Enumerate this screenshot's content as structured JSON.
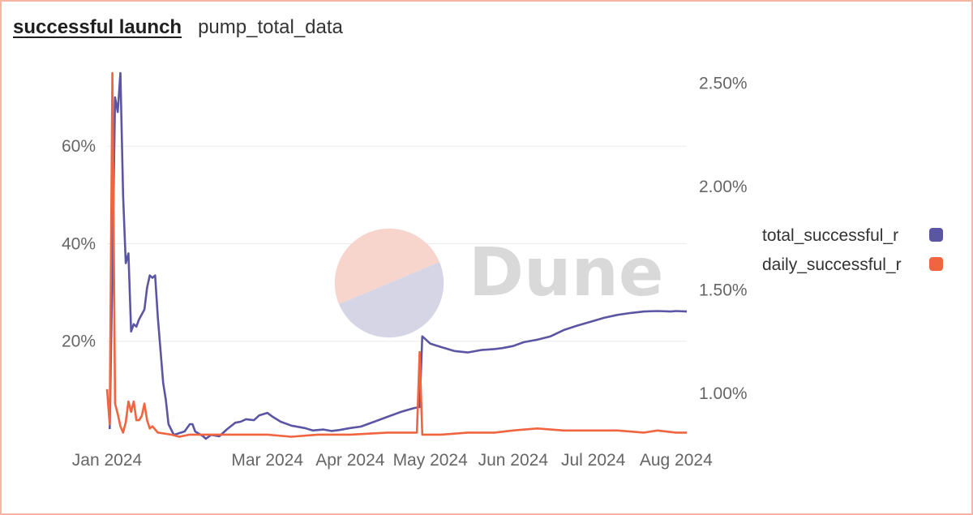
{
  "header": {
    "title": "successful launch",
    "subtitle": "pump_total_data"
  },
  "watermark": {
    "text": "Dune"
  },
  "colors": {
    "total": "#5a56a3",
    "daily": "#f0643f",
    "grid": "#ececec",
    "border": "#f4b5a3"
  },
  "chart_data": {
    "type": "line",
    "x_ticks": [
      "Jan 2024",
      "Mar 2024",
      "Apr 2024",
      "May 2024",
      "Jun 2024",
      "Jul 2024",
      "Aug 2024"
    ],
    "x_tick_dates": [
      "2024-01-01",
      "2024-03-01",
      "2024-04-01",
      "2024-05-01",
      "2024-06-01",
      "2024-07-01",
      "2024-08-01"
    ],
    "x_range": [
      "2024-01-01",
      "2024-08-05"
    ],
    "y_left": {
      "ticks": [
        "20%",
        "40%",
        "60%"
      ],
      "tick_values": [
        20,
        40,
        60
      ],
      "range": [
        0,
        75
      ]
    },
    "y_right": {
      "ticks": [
        "1.00%",
        "1.50%",
        "2.00%",
        "2.50%"
      ],
      "tick_values": [
        1.0,
        1.5,
        2.0,
        2.5
      ],
      "range": [
        0.78,
        2.55
      ]
    },
    "grid": true,
    "legend": {
      "position": "right"
    },
    "series": [
      {
        "name": "total_successful_r",
        "axis": "left",
        "color": "#5a56a3",
        "points": [
          [
            "2024-01-02",
            2
          ],
          [
            "2024-01-03",
            35
          ],
          [
            "2024-01-04",
            70
          ],
          [
            "2024-01-05",
            67
          ],
          [
            "2024-01-06",
            75
          ],
          [
            "2024-01-07",
            50
          ],
          [
            "2024-01-08",
            36
          ],
          [
            "2024-01-09",
            38
          ],
          [
            "2024-01-10",
            22
          ],
          [
            "2024-01-11",
            23.5
          ],
          [
            "2024-01-12",
            23
          ],
          [
            "2024-01-13",
            24.5
          ],
          [
            "2024-01-15",
            26.5
          ],
          [
            "2024-01-16",
            31
          ],
          [
            "2024-01-17",
            33.5
          ],
          [
            "2024-01-18",
            33
          ],
          [
            "2024-01-19",
            33.5
          ],
          [
            "2024-01-20",
            25
          ],
          [
            "2024-01-22",
            11.5
          ],
          [
            "2024-01-23",
            8
          ],
          [
            "2024-01-24",
            3
          ],
          [
            "2024-01-26",
            0.8
          ],
          [
            "2024-01-30",
            1.5
          ],
          [
            "2024-02-01",
            3
          ],
          [
            "2024-02-02",
            3
          ],
          [
            "2024-02-03",
            1.5
          ],
          [
            "2024-02-06",
            0.5
          ],
          [
            "2024-02-07",
            0
          ],
          [
            "2024-02-09",
            0.8
          ],
          [
            "2024-02-12",
            0.5
          ],
          [
            "2024-02-15",
            2
          ],
          [
            "2024-02-18",
            3.3
          ],
          [
            "2024-02-20",
            3.5
          ],
          [
            "2024-02-22",
            4
          ],
          [
            "2024-02-25",
            3.8
          ],
          [
            "2024-02-27",
            4.8
          ],
          [
            "2024-03-01",
            5.3
          ],
          [
            "2024-03-03",
            4.5
          ],
          [
            "2024-03-06",
            3.5
          ],
          [
            "2024-03-10",
            2.7
          ],
          [
            "2024-03-15",
            2.2
          ],
          [
            "2024-03-18",
            1.7
          ],
          [
            "2024-03-22",
            1.9
          ],
          [
            "2024-03-25",
            1.6
          ],
          [
            "2024-03-28",
            1.8
          ],
          [
            "2024-04-01",
            2.2
          ],
          [
            "2024-04-05",
            2.5
          ],
          [
            "2024-04-10",
            3.5
          ],
          [
            "2024-04-15",
            4.5
          ],
          [
            "2024-04-20",
            5.5
          ],
          [
            "2024-04-25",
            6.3
          ],
          [
            "2024-04-27",
            6.5
          ],
          [
            "2024-04-28",
            21
          ],
          [
            "2024-05-01",
            19.5
          ],
          [
            "2024-05-05",
            18.8
          ],
          [
            "2024-05-10",
            18
          ],
          [
            "2024-05-15",
            17.7
          ],
          [
            "2024-05-20",
            18.2
          ],
          [
            "2024-05-25",
            18.4
          ],
          [
            "2024-05-28",
            18.6
          ],
          [
            "2024-06-01",
            19
          ],
          [
            "2024-06-05",
            19.8
          ],
          [
            "2024-06-10",
            20.3
          ],
          [
            "2024-06-15",
            21
          ],
          [
            "2024-06-20",
            22.3
          ],
          [
            "2024-06-25",
            23.2
          ],
          [
            "2024-06-30",
            24
          ],
          [
            "2024-07-05",
            24.8
          ],
          [
            "2024-07-10",
            25.4
          ],
          [
            "2024-07-15",
            25.8
          ],
          [
            "2024-07-20",
            26.1
          ],
          [
            "2024-07-25",
            26.2
          ],
          [
            "2024-07-30",
            26.1
          ],
          [
            "2024-08-01",
            26.2
          ],
          [
            "2024-08-05",
            26.1
          ]
        ]
      },
      {
        "name": "daily_successful_r",
        "axis": "right",
        "color": "#f0643f",
        "points": [
          [
            "2024-01-01",
            1.02
          ],
          [
            "2024-01-02",
            0.85
          ],
          [
            "2024-01-03",
            2.55
          ],
          [
            "2024-01-04",
            0.95
          ],
          [
            "2024-01-05",
            0.9
          ],
          [
            "2024-01-06",
            0.84
          ],
          [
            "2024-01-07",
            0.81
          ],
          [
            "2024-01-08",
            0.86
          ],
          [
            "2024-01-09",
            0.96
          ],
          [
            "2024-01-10",
            0.91
          ],
          [
            "2024-01-11",
            0.96
          ],
          [
            "2024-01-12",
            0.87
          ],
          [
            "2024-01-13",
            0.87
          ],
          [
            "2024-01-14",
            0.89
          ],
          [
            "2024-01-15",
            0.95
          ],
          [
            "2024-01-16",
            0.87
          ],
          [
            "2024-01-17",
            0.83
          ],
          [
            "2024-01-18",
            0.84
          ],
          [
            "2024-01-20",
            0.81
          ],
          [
            "2024-01-25",
            0.8
          ],
          [
            "2024-01-28",
            0.79
          ],
          [
            "2024-02-01",
            0.8
          ],
          [
            "2024-02-10",
            0.8
          ],
          [
            "2024-02-20",
            0.8
          ],
          [
            "2024-03-01",
            0.8
          ],
          [
            "2024-03-10",
            0.79
          ],
          [
            "2024-03-20",
            0.8
          ],
          [
            "2024-04-01",
            0.8
          ],
          [
            "2024-04-15",
            0.81
          ],
          [
            "2024-04-26",
            0.81
          ],
          [
            "2024-04-27",
            1.2
          ],
          [
            "2024-04-28",
            0.8
          ],
          [
            "2024-05-05",
            0.8
          ],
          [
            "2024-05-15",
            0.81
          ],
          [
            "2024-05-25",
            0.81
          ],
          [
            "2024-06-01",
            0.82
          ],
          [
            "2024-06-10",
            0.83
          ],
          [
            "2024-06-20",
            0.82
          ],
          [
            "2024-06-30",
            0.82
          ],
          [
            "2024-07-10",
            0.82
          ],
          [
            "2024-07-20",
            0.81
          ],
          [
            "2024-07-25",
            0.82
          ],
          [
            "2024-08-01",
            0.81
          ],
          [
            "2024-08-05",
            0.81
          ]
        ]
      }
    ]
  }
}
